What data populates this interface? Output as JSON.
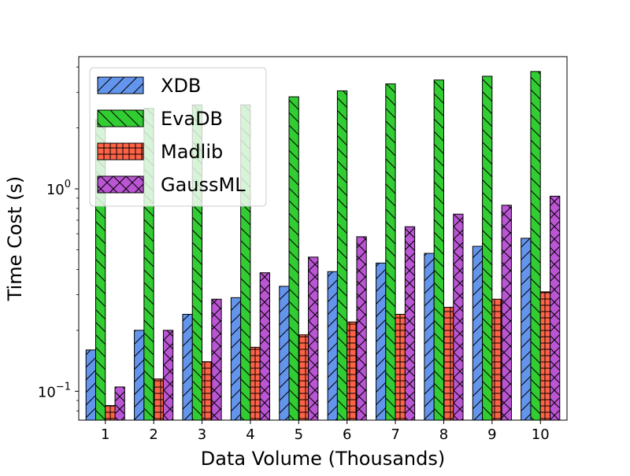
{
  "chart_data": {
    "type": "bar",
    "xlabel": "Data Volume (Thousands)",
    "ylabel": "Time Cost (s)",
    "yscale": "log",
    "ylim": [
      0.072,
      4.5
    ],
    "categories": [
      "1",
      "2",
      "3",
      "4",
      "5",
      "6",
      "7",
      "8",
      "9",
      "10"
    ],
    "y_ticks": [
      {
        "value": 0.1,
        "base": "10",
        "exp": "−1"
      },
      {
        "value": 1,
        "base": "10",
        "exp": "0"
      }
    ],
    "legend_position": "upper-left",
    "grid": false,
    "series": [
      {
        "name": "XDB",
        "color": "#6495ED",
        "hatch": "forward-slash",
        "values": [
          0.16,
          0.2,
          0.24,
          0.29,
          0.33,
          0.39,
          0.43,
          0.48,
          0.52,
          0.57
        ]
      },
      {
        "name": "EvaDB",
        "color": "#32CD32",
        "hatch": "back-slash",
        "values": [
          2.2,
          2.5,
          2.6,
          2.6,
          2.85,
          3.05,
          3.3,
          3.45,
          3.6,
          3.8
        ]
      },
      {
        "name": "Madlib",
        "color": "#FF6347",
        "hatch": "grid",
        "values": [
          0.085,
          0.115,
          0.14,
          0.165,
          0.19,
          0.22,
          0.24,
          0.26,
          0.285,
          0.31
        ]
      },
      {
        "name": "GaussML",
        "color": "#BA55D3",
        "hatch": "cross",
        "values": [
          0.105,
          0.2,
          0.285,
          0.385,
          0.46,
          0.58,
          0.65,
          0.75,
          0.83,
          0.92
        ]
      }
    ]
  }
}
